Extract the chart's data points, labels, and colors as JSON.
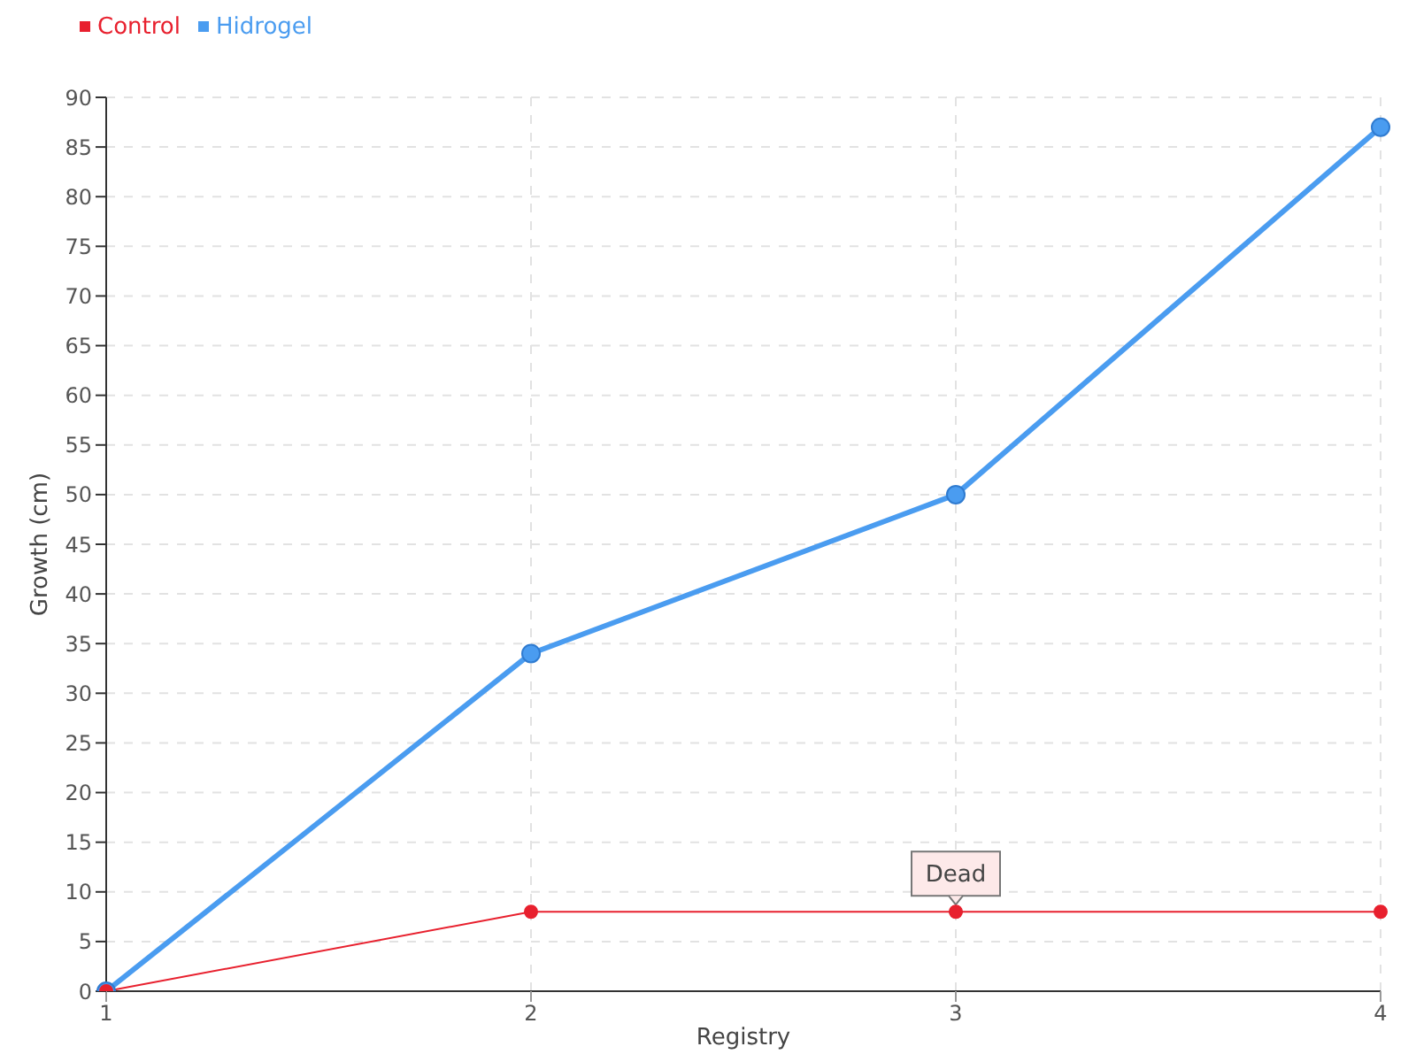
{
  "chart_data": {
    "type": "line",
    "xlabel": "Registry",
    "ylabel": "Growth (cm)",
    "categories": [
      "1",
      "2",
      "3",
      "4"
    ],
    "series": [
      {
        "name": "Hidrogel",
        "color": "#4a9cf0",
        "values": [
          0,
          34,
          50,
          87
        ]
      },
      {
        "name": "Control",
        "color": "#e8202e",
        "values": [
          0,
          8,
          8,
          8
        ]
      }
    ],
    "ylim": [
      0,
      90
    ],
    "yticks": [
      0,
      5,
      10,
      15,
      20,
      25,
      30,
      35,
      40,
      45,
      50,
      55,
      60,
      65,
      70,
      75,
      80,
      85,
      90
    ],
    "grid": true,
    "legend": "top left",
    "marker": "circle",
    "line_style": "solid",
    "annotations": [
      {
        "text": "Dead",
        "x": "3",
        "y": 8
      }
    ]
  }
}
